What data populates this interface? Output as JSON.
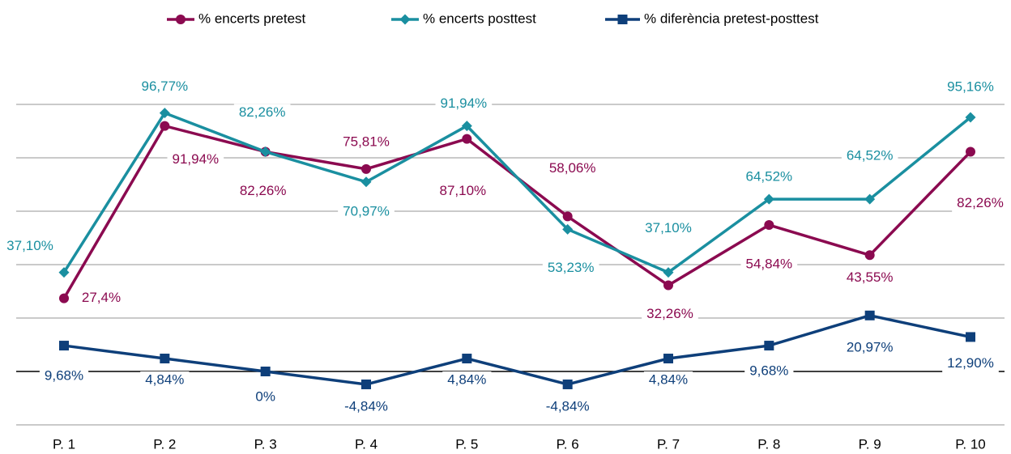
{
  "chart_data": {
    "type": "line",
    "categories": [
      "P. 1",
      "P. 2",
      "P. 3",
      "P. 4",
      "P. 5",
      "P. 6",
      "P. 7",
      "P. 8",
      "P. 9",
      "P. 10"
    ],
    "series": [
      {
        "name": "% encerts pretest",
        "color": "#8b0a50",
        "marker": "circle",
        "values": [
          27.4,
          91.94,
          82.26,
          75.81,
          87.1,
          58.06,
          32.26,
          54.84,
          43.55,
          82.26
        ],
        "value_labels": [
          "27,4%",
          "91,94%",
          "82,26%",
          "75,81%",
          "87,10%",
          "58,06%",
          "32,26%",
          "54,84%",
          "43,55%",
          "82,26%"
        ]
      },
      {
        "name": "% encerts posttest",
        "color": "#1a8fa0",
        "marker": "diamond",
        "values": [
          37.1,
          96.77,
          82.26,
          70.97,
          91.94,
          53.23,
          37.1,
          64.52,
          64.52,
          95.16
        ],
        "value_labels": [
          "37,10%",
          "96,77%",
          "82,26%",
          "70,97%",
          "91,94%",
          "53,23%",
          "37,10%",
          "64,52%",
          "64,52%",
          "95,16%"
        ]
      },
      {
        "name": "% diferència pretest-posttest",
        "color": "#0e3f7a",
        "marker": "square",
        "values": [
          9.68,
          4.84,
          0,
          -4.84,
          4.84,
          -4.84,
          4.84,
          9.68,
          20.97,
          12.9
        ],
        "value_labels": [
          "9,68%",
          "4,84%",
          "0%",
          "-4,84%",
          "4,84%",
          "-4,84%",
          "4,84%",
          "9,68%",
          "20,97%",
          "12,90%"
        ]
      }
    ],
    "ylim": [
      -20,
      100
    ],
    "yticks": [
      -20,
      0,
      20,
      40,
      60,
      80,
      100
    ],
    "grid": true,
    "legend": "top"
  }
}
